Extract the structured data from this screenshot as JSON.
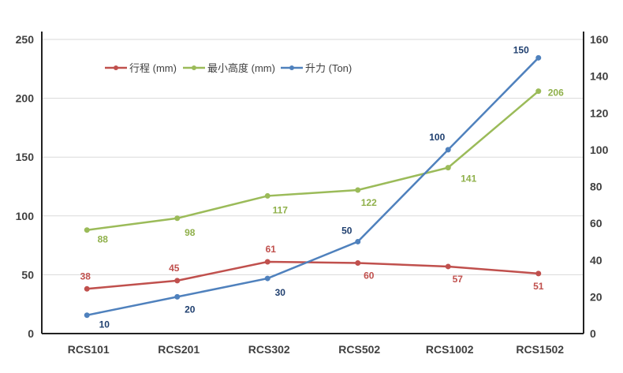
{
  "chart_data": {
    "type": "line",
    "categories": [
      "RCS101",
      "RCS201",
      "RCS302",
      "RCS502",
      "RCS1002",
      "RCS1502"
    ],
    "series": [
      {
        "name": "行程 (mm)",
        "axis": "left",
        "color": "#c0504d",
        "values": [
          38,
          45,
          61,
          60,
          57,
          51
        ]
      },
      {
        "name": "最小高度 (mm)",
        "axis": "left",
        "color": "#9bbb59",
        "values": [
          88,
          98,
          117,
          122,
          141,
          206
        ]
      },
      {
        "name": "升力 (Ton)",
        "axis": "right",
        "color": "#4f81bd",
        "values": [
          10,
          20,
          30,
          50,
          100,
          150
        ]
      }
    ],
    "label_colors": {
      "行程 (mm)": "#c0504d",
      "最小高度 (mm)": "#8fb04a",
      "升力 (Ton)": "#1f3f6f"
    },
    "y_left": {
      "lim": [
        0,
        250
      ],
      "ticks": [
        0,
        50,
        100,
        150,
        200,
        250
      ]
    },
    "y_right": {
      "lim": [
        0,
        160
      ],
      "ticks": [
        0,
        20,
        40,
        60,
        80,
        100,
        120,
        140,
        160
      ]
    },
    "grid": true,
    "legend": "top-left"
  }
}
